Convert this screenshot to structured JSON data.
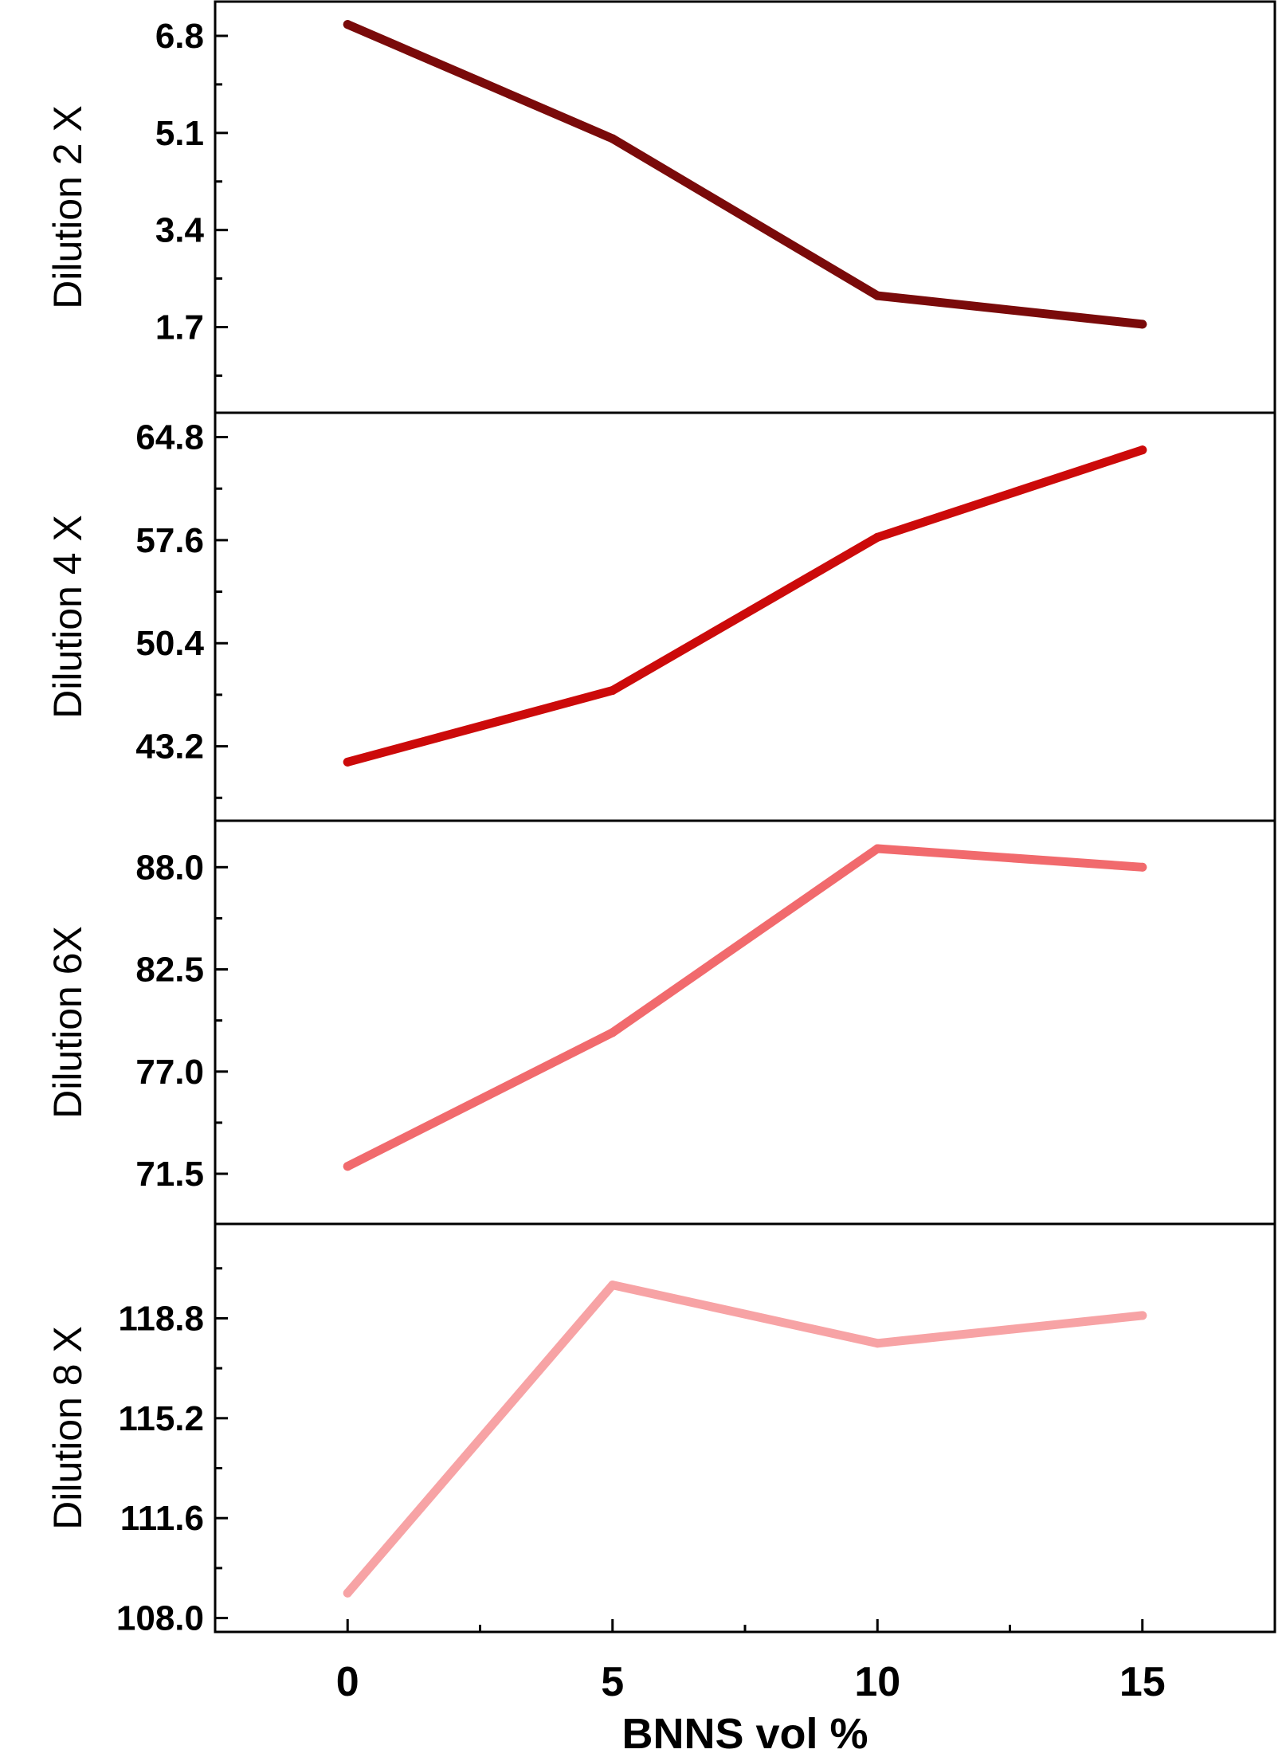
{
  "chart_data": {
    "type": "line",
    "x": [
      0,
      5,
      10,
      15
    ],
    "x_ticks": [
      "0",
      "5",
      "10",
      "15"
    ],
    "xlabel": "BNNS vol %",
    "xlim": [
      -2.5,
      17.5
    ],
    "grid": false,
    "legend": "none",
    "panels": [
      {
        "ylabel": "Dilution 2 X",
        "ylim": [
          0.2,
          7.4
        ],
        "yticks": [
          "1.7",
          "3.4",
          "5.1",
          "6.8"
        ],
        "ytick_values": [
          1.7,
          3.4,
          5.1,
          6.8
        ],
        "color": "#7a0a0a",
        "values": [
          7.0,
          5.0,
          2.25,
          1.75
        ]
      },
      {
        "ylabel": "Dilution 4 X",
        "ylim": [
          38.0,
          66.5
        ],
        "yticks": [
          "43.2",
          "50.4",
          "57.6",
          "64.8"
        ],
        "ytick_values": [
          43.2,
          50.4,
          57.6,
          64.8
        ],
        "color": "#cc0a0a",
        "values": [
          42.1,
          47.1,
          57.8,
          63.9
        ]
      },
      {
        "ylabel": "Dilution 6X",
        "ylim": [
          68.8,
          90.5
        ],
        "yticks": [
          "71.5",
          "77.0",
          "82.5",
          "88.0"
        ],
        "ytick_values": [
          71.5,
          77.0,
          82.5,
          88.0
        ],
        "color": "#f16a6d",
        "values": [
          71.9,
          79.1,
          89.0,
          88.0
        ]
      },
      {
        "ylabel": "Dilution 8 X",
        "ylim": [
          107.5,
          122.2
        ],
        "yticks": [
          "108.0",
          "111.6",
          "115.2",
          "118.8"
        ],
        "ytick_values": [
          108.0,
          111.6,
          115.2,
          118.8
        ],
        "color": "#f7a3a5",
        "values": [
          108.9,
          120.0,
          117.9,
          118.9
        ]
      }
    ]
  }
}
